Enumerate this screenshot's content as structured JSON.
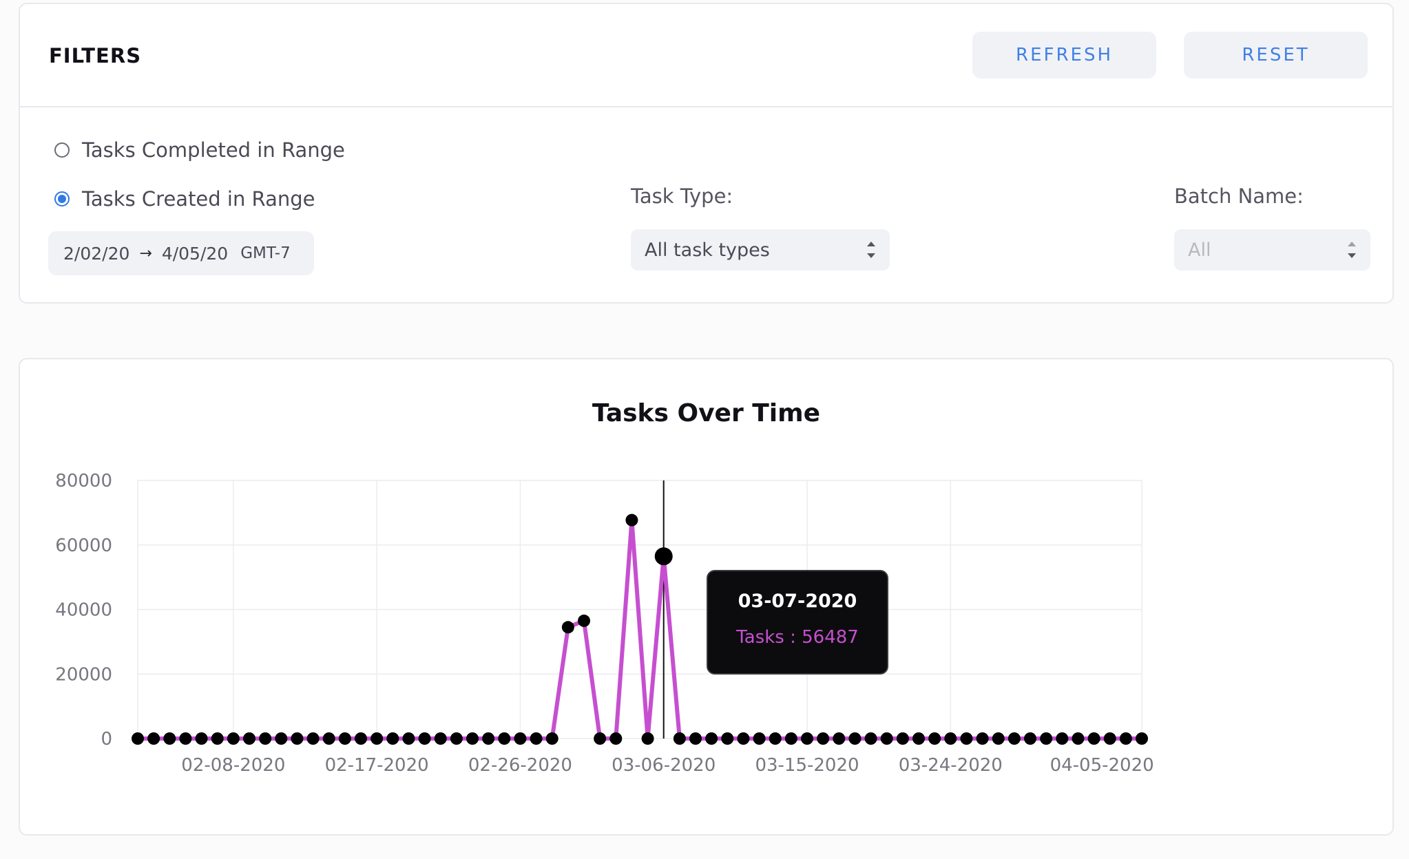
{
  "filters": {
    "title": "FILTERS",
    "refresh_label": "REFRESH",
    "reset_label": "RESET",
    "range_options": [
      {
        "label": "Tasks Completed in Range",
        "selected": false
      },
      {
        "label": "Tasks Created in Range",
        "selected": true
      }
    ],
    "date_range": {
      "start": "2/02/20",
      "arrow": "→",
      "end": "4/05/20",
      "timezone": "GMT-7"
    },
    "task_type": {
      "label": "Task Type:",
      "value": "All task types"
    },
    "batch_name": {
      "label": "Batch Name:",
      "value": "All",
      "disabled": true
    }
  },
  "chart_data": {
    "type": "line",
    "title": "Tasks Over Time",
    "xlabel": "",
    "ylabel": "",
    "ylim": [
      0,
      80000
    ],
    "yticks": [
      "80000",
      "60000",
      "40000",
      "20000",
      "0"
    ],
    "xtick_labels": [
      "02-08-2020",
      "02-17-2020",
      "02-26-2020",
      "03-06-2020",
      "03-15-2020",
      "03-24-2020",
      "04-05-2020"
    ],
    "grid": true,
    "line_color": "#c64fd0",
    "point_color": "#000000",
    "series": [
      {
        "name": "Tasks",
        "values": [
          0,
          0,
          0,
          0,
          0,
          0,
          0,
          0,
          0,
          0,
          0,
          0,
          0,
          0,
          0,
          0,
          0,
          0,
          0,
          0,
          0,
          0,
          0,
          0,
          0,
          0,
          0,
          34500,
          36500,
          0,
          0,
          67700,
          0,
          56487,
          0,
          0,
          0,
          0,
          0,
          0,
          0,
          0,
          0,
          0,
          0,
          0,
          0,
          0,
          0,
          0,
          0,
          0,
          0,
          0,
          0,
          0,
          0,
          0,
          0,
          0,
          0,
          0,
          0,
          0
        ]
      }
    ],
    "highlight_index": 33,
    "tooltip": {
      "date": "03-07-2020",
      "label": "Tasks : 56487"
    }
  }
}
